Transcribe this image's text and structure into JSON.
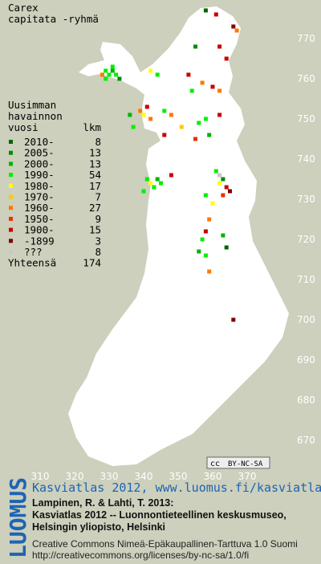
{
  "title": "Carex",
  "subtitle": "capitata -ryhmä",
  "legend": {
    "header": [
      "Uusimman",
      "havainnon",
      "vuosi"
    ],
    "count_header": "lkm",
    "classes": [
      {
        "label": "2010-",
        "count": 8,
        "color": "#006400"
      },
      {
        "label": "2005-",
        "count": 13,
        "color": "#008c00"
      },
      {
        "label": "2000-",
        "count": 13,
        "color": "#00b400"
      },
      {
        "label": "1990-",
        "count": 54,
        "color": "#00f000"
      },
      {
        "label": "1980-",
        "count": 17,
        "color": "#ffff00"
      },
      {
        "label": "1970-",
        "count": 7,
        "color": "#ffc800"
      },
      {
        "label": "1960-",
        "count": 27,
        "color": "#ff7800"
      },
      {
        "label": "1950-",
        "count": 9,
        "color": "#e63200"
      },
      {
        "label": "1900-",
        "count": 15,
        "color": "#c80000"
      },
      {
        "label": "-1899",
        "count": 3,
        "color": "#800000"
      },
      {
        "label": "???",
        "count": 8,
        "color": "#c8c8c8"
      }
    ],
    "total_label": "Yhteensä",
    "total": 174
  },
  "grid": {
    "xticks": [
      310,
      320,
      330,
      340,
      350,
      360,
      370
    ],
    "yticks": [
      670,
      680,
      690,
      700,
      710,
      720,
      730,
      740,
      750,
      760,
      770
    ]
  },
  "points": [
    {
      "x": 329,
      "y": 762,
      "class": 3
    },
    {
      "x": 330,
      "y": 761,
      "class": 3
    },
    {
      "x": 331,
      "y": 762,
      "class": 2
    },
    {
      "x": 332,
      "y": 761,
      "class": 3
    },
    {
      "x": 329,
      "y": 760,
      "class": 3
    },
    {
      "x": 333,
      "y": 760,
      "class": 1
    },
    {
      "x": 331,
      "y": 763,
      "class": 3
    },
    {
      "x": 328,
      "y": 761,
      "class": 6
    },
    {
      "x": 358,
      "y": 777,
      "class": 0
    },
    {
      "x": 361,
      "y": 776,
      "class": 8
    },
    {
      "x": 366,
      "y": 773,
      "class": 9
    },
    {
      "x": 367,
      "y": 772,
      "class": 6
    },
    {
      "x": 355,
      "y": 768,
      "class": 1
    },
    {
      "x": 362,
      "y": 768,
      "class": 8
    },
    {
      "x": 364,
      "y": 765,
      "class": 8
    },
    {
      "x": 353,
      "y": 761,
      "class": 8
    },
    {
      "x": 357,
      "y": 759,
      "class": 6
    },
    {
      "x": 360,
      "y": 758,
      "class": 8
    },
    {
      "x": 362,
      "y": 757,
      "class": 6
    },
    {
      "x": 354,
      "y": 757,
      "class": 3
    },
    {
      "x": 344,
      "y": 761,
      "class": 3
    },
    {
      "x": 342,
      "y": 762,
      "class": 4
    },
    {
      "x": 339,
      "y": 752,
      "class": 6
    },
    {
      "x": 340,
      "y": 751,
      "class": 4
    },
    {
      "x": 341,
      "y": 753,
      "class": 8
    },
    {
      "x": 342,
      "y": 750,
      "class": 6
    },
    {
      "x": 336,
      "y": 751,
      "class": 2
    },
    {
      "x": 337,
      "y": 748,
      "class": 3
    },
    {
      "x": 346,
      "y": 752,
      "class": 3
    },
    {
      "x": 348,
      "y": 751,
      "class": 6
    },
    {
      "x": 351,
      "y": 748,
      "class": 5
    },
    {
      "x": 356,
      "y": 749,
      "class": 3
    },
    {
      "x": 358,
      "y": 750,
      "class": 3
    },
    {
      "x": 362,
      "y": 751,
      "class": 8
    },
    {
      "x": 359,
      "y": 746,
      "class": 2
    },
    {
      "x": 355,
      "y": 745,
      "class": 7
    },
    {
      "x": 346,
      "y": 746,
      "class": 8
    },
    {
      "x": 341,
      "y": 735,
      "class": 3
    },
    {
      "x": 342,
      "y": 734,
      "class": 4
    },
    {
      "x": 343,
      "y": 733,
      "class": 3
    },
    {
      "x": 344,
      "y": 735,
      "class": 2
    },
    {
      "x": 345,
      "y": 734,
      "class": 3
    },
    {
      "x": 340,
      "y": 732,
      "class": 3
    },
    {
      "x": 348,
      "y": 736,
      "class": 8
    },
    {
      "x": 361,
      "y": 737,
      "class": 3
    },
    {
      "x": 362,
      "y": 736,
      "class": 10
    },
    {
      "x": 363,
      "y": 735,
      "class": 1
    },
    {
      "x": 362,
      "y": 734,
      "class": 4
    },
    {
      "x": 364,
      "y": 733,
      "class": 8
    },
    {
      "x": 363,
      "y": 731,
      "class": 7
    },
    {
      "x": 365,
      "y": 732,
      "class": 9
    },
    {
      "x": 358,
      "y": 731,
      "class": 3
    },
    {
      "x": 360,
      "y": 729,
      "class": 4
    },
    {
      "x": 359,
      "y": 725,
      "class": 6
    },
    {
      "x": 358,
      "y": 722,
      "class": 8
    },
    {
      "x": 357,
      "y": 720,
      "class": 3
    },
    {
      "x": 356,
      "y": 717,
      "class": 2
    },
    {
      "x": 358,
      "y": 716,
      "class": 3
    },
    {
      "x": 359,
      "y": 712,
      "class": 6
    },
    {
      "x": 363,
      "y": 721,
      "class": 2
    },
    {
      "x": 366,
      "y": 700,
      "class": 9
    },
    {
      "x": 364,
      "y": 718,
      "class": 0
    }
  ],
  "footer": {
    "brand": "LUOMUS",
    "link": "Kasviatlas 2012, www.luomus.fi/kasviatlas",
    "citation": [
      "Lampinen, R. & Lahti, T. 2013:",
      "Kasviatlas 2012 -- Luonnontieteellinen keskusmuseo,",
      "Helsingin yliopisto, Helsinki"
    ],
    "license": [
      "Creative Commons Nimeä-Epäkaupallinen-Tarttuva 1.0 Suomi",
      "http://creativecommons.org/licenses/by-nc-sa/1.0/fi"
    ],
    "badge": [
      "cc",
      "BY-NC-SA"
    ]
  }
}
